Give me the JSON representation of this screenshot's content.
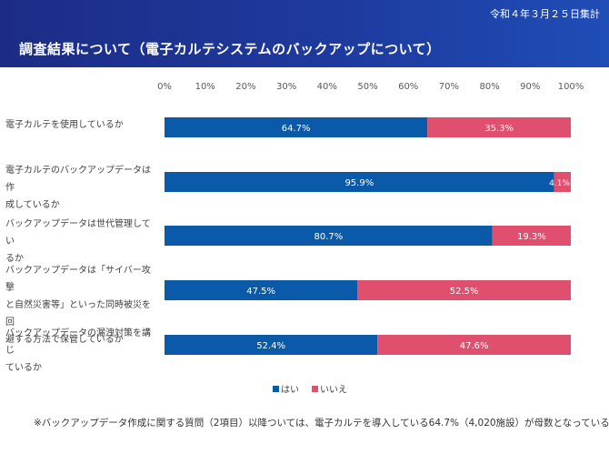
{
  "header": {
    "date": "令和４年３月２５日集計",
    "title": "調査結果について（電子カルテシステムのバックアップについて）"
  },
  "colors": {
    "header_bg": "#1e3a9e",
    "yes": "#0b5aa9",
    "no": "#e04f6e"
  },
  "chart_data": {
    "type": "bar",
    "orientation": "horizontal",
    "stacked": true,
    "categories": [
      "電子カルテを使用しているか",
      "電子カルテのバックアップデータは作成しているか",
      "バックアップデータは世代管理しているか",
      "バックアップデータは「サイバー攻撃と自然災害等」といった同時被災を回避する方法で保管しているか",
      "バックアップデータの漏洩対策を講じているか"
    ],
    "category_lines": [
      [
        "電子カルテを使用しているか"
      ],
      [
        "電子カルテのバックアップデータは作",
        "成しているか"
      ],
      [
        "バックアップデータは世代管理してい",
        "るか"
      ],
      [
        "バックアップデータは「サイバー攻撃",
        "と自然災害等」といった同時被災を回",
        "避する方法で保管しているか"
      ],
      [
        "バックアップデータの漏洩対策を講じ",
        "ているか"
      ]
    ],
    "series": [
      {
        "name": "はい",
        "values": [
          64.7,
          95.9,
          80.7,
          47.5,
          52.4
        ],
        "color": "#0b5aa9"
      },
      {
        "name": "いいえ",
        "values": [
          35.3,
          4.1,
          19.3,
          52.5,
          47.6
        ],
        "color": "#e04f6e"
      }
    ],
    "xlim": [
      0,
      100
    ],
    "xticks": [
      "0%",
      "10%",
      "20%",
      "30%",
      "40%",
      "50%",
      "60%",
      "70%",
      "80%",
      "90%",
      "100%"
    ],
    "value_format": "%",
    "legend": "bottom",
    "grid": false
  },
  "footnote": "※バックアップデータ作成に関する質問（2項目）以降ついては、電子カルテを導入している64.7%（4,020施設）が母数となっている。"
}
